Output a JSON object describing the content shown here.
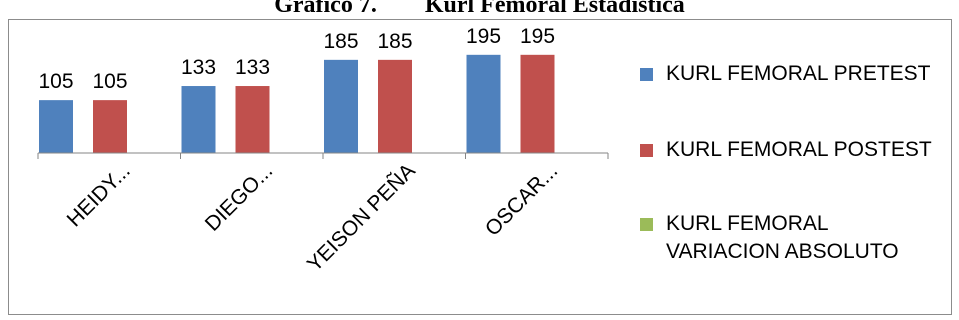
{
  "title": "Gráfico 7.        Kurl Femoral Estadística",
  "chart_data": {
    "type": "bar",
    "categories": [
      "HEIDY...",
      "DIEGO...",
      "YEISON PEÑA",
      "OSCAR..."
    ],
    "series": [
      {
        "name": "KURL FEMORAL  PRETEST",
        "values": [
          105,
          133,
          185,
          195
        ],
        "color": "#4f81bd"
      },
      {
        "name": "KURL FEMORAL  POSTEST",
        "values": [
          105,
          133,
          185,
          195
        ],
        "color": "#c0504d"
      },
      {
        "name": "KURL FEMORAL VARIACION ABSOLUTO",
        "values": [
          0,
          0,
          0,
          0
        ],
        "color": "#9bbb59"
      }
    ],
    "ylim": [
      0,
      250
    ],
    "grid": false,
    "data_labels": true,
    "legend": "right"
  },
  "legend": {
    "items": [
      {
        "lines": [
          "KURL FEMORAL  PRETEST"
        ],
        "color": "#4f81bd"
      },
      {
        "lines": [
          "KURL FEMORAL  POSTEST"
        ],
        "color": "#c0504d"
      },
      {
        "lines": [
          "KURL FEMORAL",
          "VARIACION ABSOLUTO"
        ],
        "color": "#9bbb59"
      }
    ]
  }
}
